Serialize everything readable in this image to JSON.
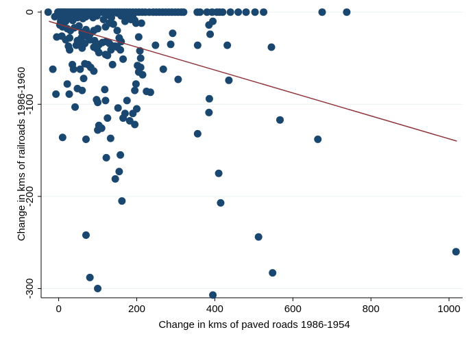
{
  "chart_data": {
    "type": "scatter",
    "title": "",
    "xlabel": "Change in kms of paved roads 1986-1954",
    "ylabel": "Change in kms of railroads 1986-1960",
    "xlim": [
      -45,
      1035
    ],
    "ylim": [
      -310,
      2
    ],
    "xticks": [
      0,
      200,
      400,
      600,
      800,
      1000
    ],
    "yticks": [
      0,
      -100,
      -200,
      -300
    ],
    "grid": "horizontal",
    "legend": "none",
    "marker_color": "#1a476f",
    "fit_line_color": "#90353b",
    "fit_line": {
      "x": [
        -25,
        1020
      ],
      "y": [
        -10,
        -140
      ]
    },
    "series": [
      {
        "points": [
          [
            -27,
            0
          ],
          [
            -2,
            0
          ],
          [
            1,
            0
          ],
          [
            4,
            0
          ],
          [
            7,
            0
          ],
          [
            10,
            0
          ],
          [
            13,
            0
          ],
          [
            16,
            0
          ],
          [
            20,
            0
          ],
          [
            24,
            0
          ],
          [
            28,
            0
          ],
          [
            32,
            0
          ],
          [
            36,
            0
          ],
          [
            40,
            0
          ],
          [
            44,
            0
          ],
          [
            48,
            0
          ],
          [
            52,
            0
          ],
          [
            56,
            0
          ],
          [
            60,
            0
          ],
          [
            64,
            0
          ],
          [
            68,
            0
          ],
          [
            72,
            0
          ],
          [
            76,
            0
          ],
          [
            80,
            0
          ],
          [
            85,
            0
          ],
          [
            90,
            0
          ],
          [
            95,
            0
          ],
          [
            100,
            0
          ],
          [
            105,
            0
          ],
          [
            110,
            0
          ],
          [
            115,
            0
          ],
          [
            120,
            0
          ],
          [
            126,
            0
          ],
          [
            132,
            0
          ],
          [
            138,
            0
          ],
          [
            144,
            0
          ],
          [
            150,
            0
          ],
          [
            156,
            0
          ],
          [
            162,
            0
          ],
          [
            168,
            0
          ],
          [
            175,
            0
          ],
          [
            182,
            0
          ],
          [
            190,
            0
          ],
          [
            198,
            0
          ],
          [
            206,
            0
          ],
          [
            214,
            0
          ],
          [
            222,
            0
          ],
          [
            232,
            0
          ],
          [
            242,
            0
          ],
          [
            250,
            0
          ],
          [
            258,
            0
          ],
          [
            266,
            0
          ],
          [
            274,
            0
          ],
          [
            282,
            0
          ],
          [
            290,
            0
          ],
          [
            298,
            0
          ],
          [
            306,
            0
          ],
          [
            314,
            0
          ],
          [
            320,
            0
          ],
          [
            355,
            0
          ],
          [
            362,
            0
          ],
          [
            380,
            0
          ],
          [
            393,
            0
          ],
          [
            405,
            0
          ],
          [
            412,
            0
          ],
          [
            420,
            0
          ],
          [
            440,
            0
          ],
          [
            460,
            0
          ],
          [
            480,
            0
          ],
          [
            503,
            0
          ],
          [
            525,
            0
          ],
          [
            675,
            0
          ],
          [
            738,
            0
          ],
          [
            2,
            -2
          ],
          [
            8,
            -2
          ],
          [
            14,
            -2
          ],
          [
            24,
            -1
          ],
          [
            40,
            -1
          ],
          [
            60,
            -1
          ],
          [
            80,
            -1
          ],
          [
            120,
            -1
          ],
          [
            150,
            -1
          ],
          [
            180,
            -2
          ],
          [
            -10,
            -5
          ],
          [
            0,
            -4
          ],
          [
            8,
            -6
          ],
          [
            14,
            -8
          ],
          [
            20,
            -5
          ],
          [
            5,
            -10
          ],
          [
            12,
            -12
          ],
          [
            18,
            -10
          ],
          [
            26,
            -7
          ],
          [
            30,
            -4
          ],
          [
            36,
            -9
          ],
          [
            42,
            -3
          ],
          [
            48,
            -6
          ],
          [
            55,
            -4
          ],
          [
            62,
            -7
          ],
          [
            70,
            -5
          ],
          [
            78,
            -3
          ],
          [
            88,
            -6
          ],
          [
            98,
            -4
          ],
          [
            115,
            -8
          ],
          [
            125,
            -3
          ],
          [
            135,
            -6
          ],
          [
            160,
            -4
          ],
          [
            175,
            -3
          ],
          [
            190,
            -6
          ],
          [
            195,
            -9
          ],
          [
            212,
            -12
          ],
          [
            3,
            -14
          ],
          [
            10,
            -16
          ],
          [
            22,
            -18
          ],
          [
            30,
            -20
          ],
          [
            40,
            -17
          ],
          [
            52,
            -15
          ],
          [
            60,
            -22
          ],
          [
            70,
            -19
          ],
          [
            80,
            -24
          ],
          [
            90,
            -20
          ],
          [
            100,
            -18
          ],
          [
            120,
            -16
          ],
          [
            130,
            -12
          ],
          [
            140,
            -13
          ],
          [
            150,
            -20
          ],
          [
            170,
            -10
          ],
          [
            185,
            -8
          ],
          [
            198,
            -12
          ],
          [
            -5,
            -27
          ],
          [
            8,
            -26
          ],
          [
            18,
            -30
          ],
          [
            28,
            -28
          ],
          [
            48,
            -31
          ],
          [
            58,
            -28
          ],
          [
            67,
            -34
          ],
          [
            72,
            -26
          ],
          [
            80,
            -30
          ],
          [
            92,
            -31
          ],
          [
            104,
            -35
          ],
          [
            112,
            -33
          ],
          [
            122,
            -32
          ],
          [
            130,
            -34
          ],
          [
            146,
            -37
          ],
          [
            155,
            -28
          ],
          [
            160,
            -32
          ],
          [
            25,
            -37
          ],
          [
            28,
            -41
          ],
          [
            45,
            -36
          ],
          [
            50,
            -34
          ],
          [
            60,
            -39
          ],
          [
            90,
            -38
          ],
          [
            98,
            -40
          ],
          [
            103,
            -44
          ],
          [
            120,
            -46
          ],
          [
            125,
            -47
          ],
          [
            134,
            -41
          ],
          [
            142,
            -37
          ],
          [
            150,
            -38
          ],
          [
            158,
            -41
          ],
          [
            165,
            -51
          ],
          [
            205,
            -27
          ],
          [
            208,
            -42
          ],
          [
            210,
            -50
          ],
          [
            202,
            -58
          ],
          [
            205,
            -65
          ],
          [
            210,
            -60
          ],
          [
            215,
            -68
          ],
          [
            198,
            -78
          ],
          [
            195,
            -85
          ],
          [
            225,
            -86
          ],
          [
            235,
            -87
          ],
          [
            248,
            -36
          ],
          [
            268,
            -62
          ],
          [
            287,
            -35
          ],
          [
            292,
            -23
          ],
          [
            306,
            -73
          ],
          [
            356,
            -36
          ],
          [
            386,
            -94
          ],
          [
            385,
            -109
          ],
          [
            385,
            -14
          ],
          [
            388,
            -24
          ],
          [
            395,
            -10
          ],
          [
            432,
            -36
          ],
          [
            436,
            -74
          ],
          [
            545,
            -38
          ],
          [
            567,
            -117
          ],
          [
            664,
            -138
          ],
          [
            1018,
            -260
          ],
          [
            -15,
            -62
          ],
          [
            -7,
            -89
          ],
          [
            10,
            -136
          ],
          [
            22,
            -78
          ],
          [
            27,
            -89
          ],
          [
            35,
            -57
          ],
          [
            38,
            -62
          ],
          [
            42,
            -103
          ],
          [
            48,
            -83
          ],
          [
            55,
            -62
          ],
          [
            60,
            -85
          ],
          [
            64,
            -72
          ],
          [
            67,
            -56
          ],
          [
            70,
            -138
          ],
          [
            75,
            -57
          ],
          [
            82,
            -60
          ],
          [
            90,
            -64
          ],
          [
            97,
            -95
          ],
          [
            100,
            -98
          ],
          [
            100,
            -128
          ],
          [
            103,
            -123
          ],
          [
            110,
            -126
          ],
          [
            118,
            -84
          ],
          [
            120,
            -96
          ],
          [
            122,
            -158
          ],
          [
            125,
            -115
          ],
          [
            133,
            -137
          ],
          [
            138,
            -57
          ],
          [
            145,
            -181
          ],
          [
            152,
            -104
          ],
          [
            155,
            -173
          ],
          [
            158,
            -155
          ],
          [
            162,
            -205
          ],
          [
            165,
            -115
          ],
          [
            170,
            -110
          ],
          [
            175,
            -96
          ],
          [
            182,
            -118
          ],
          [
            190,
            -110
          ],
          [
            195,
            -122
          ],
          [
            200,
            -105
          ],
          [
            70,
            -242
          ],
          [
            80,
            -288
          ],
          [
            100,
            -300
          ],
          [
            395,
            -307
          ],
          [
            415,
            -207
          ],
          [
            410,
            -175
          ],
          [
            356,
            -132
          ],
          [
            512,
            -244
          ],
          [
            548,
            -283
          ]
        ]
      }
    ]
  }
}
